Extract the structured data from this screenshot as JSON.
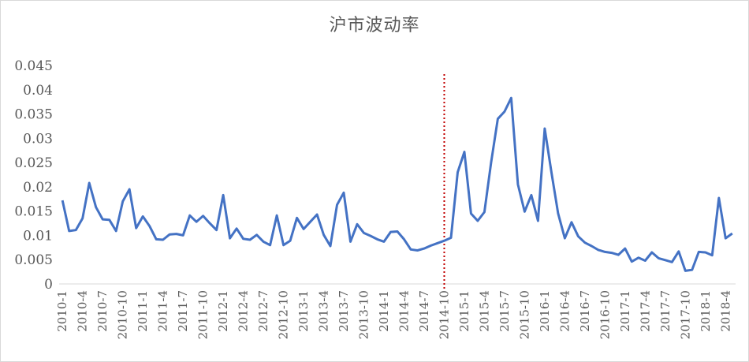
{
  "chart_data": {
    "type": "line",
    "title": "沪市波动率",
    "xlabel": "",
    "ylabel": "",
    "ylim": [
      0,
      0.045
    ],
    "yticks": [
      "0",
      "0.005",
      "0.01",
      "0.015",
      "0.02",
      "0.025",
      "0.03",
      "0.035",
      "0.04",
      "0.045"
    ],
    "grid": false,
    "legend": "none",
    "line_color": "#4472c4",
    "marker_line_color": "#c00000",
    "marker_x": "2014-10",
    "x": [
      "2010-1",
      "2010-2",
      "2010-3",
      "2010-4",
      "2010-5",
      "2010-6",
      "2010-7",
      "2010-8",
      "2010-9",
      "2010-10",
      "2010-11",
      "2010-12",
      "2011-1",
      "2011-2",
      "2011-3",
      "2011-4",
      "2011-5",
      "2011-6",
      "2011-7",
      "2011-8",
      "2011-9",
      "2011-10",
      "2011-11",
      "2011-12",
      "2012-1",
      "2012-2",
      "2012-3",
      "2012-4",
      "2012-5",
      "2012-6",
      "2012-7",
      "2012-8",
      "2012-9",
      "2012-10",
      "2012-11",
      "2012-12",
      "2013-1",
      "2013-2",
      "2013-3",
      "2013-4",
      "2013-5",
      "2013-6",
      "2013-7",
      "2013-8",
      "2013-9",
      "2013-10",
      "2013-11",
      "2013-12",
      "2014-1",
      "2014-2",
      "2014-3",
      "2014-4",
      "2014-5",
      "2014-6",
      "2014-7",
      "2014-8",
      "2014-9",
      "2014-10",
      "2014-11",
      "2014-12",
      "2015-1",
      "2015-2",
      "2015-3",
      "2015-4",
      "2015-5",
      "2015-6",
      "2015-7",
      "2015-8",
      "2015-9",
      "2015-10",
      "2015-11",
      "2015-12",
      "2016-1",
      "2016-2",
      "2016-3",
      "2016-4",
      "2016-5",
      "2016-6",
      "2016-7",
      "2016-8",
      "2016-9",
      "2016-10",
      "2016-11",
      "2016-12",
      "2017-1",
      "2017-2",
      "2017-3",
      "2017-4",
      "2017-5",
      "2017-6",
      "2017-7",
      "2017-8",
      "2017-9",
      "2017-10",
      "2017-11",
      "2017-12",
      "2018-1",
      "2018-2",
      "2018-3",
      "2018-4",
      "2018-5"
    ],
    "x_tick_labels": [
      "2010-1",
      "2010-4",
      "2010-7",
      "2010-10",
      "2011-1",
      "2011-4",
      "2011-7",
      "2011-10",
      "2012-1",
      "2012-4",
      "2012-7",
      "2012-10",
      "2013-1",
      "2013-4",
      "2013-7",
      "2013-10",
      "2014-1",
      "2014-4",
      "2014-7",
      "2014-10",
      "2015-1",
      "2015-4",
      "2015-7",
      "2015-10",
      "2016-1",
      "2016-4",
      "2016-7",
      "2016-10",
      "2017-1",
      "2017-4",
      "2017-7",
      "2017-10",
      "2018-1",
      "2018-4"
    ],
    "series": [
      {
        "values": [
          0.0172,
          0.0109,
          0.0111,
          0.0135,
          0.0208,
          0.0158,
          0.0133,
          0.0132,
          0.0109,
          0.017,
          0.0195,
          0.0115,
          0.0139,
          0.0119,
          0.0092,
          0.0091,
          0.0102,
          0.0103,
          0.01,
          0.0141,
          0.0128,
          0.014,
          0.0125,
          0.0111,
          0.0183,
          0.0094,
          0.0114,
          0.0093,
          0.0091,
          0.0101,
          0.0087,
          0.008,
          0.0141,
          0.008,
          0.0089,
          0.0136,
          0.0113,
          0.0128,
          0.0143,
          0.0101,
          0.0078,
          0.0163,
          0.0188,
          0.0087,
          0.0123,
          0.0105,
          0.0099,
          0.0092,
          0.0087,
          0.0107,
          0.0108,
          0.0092,
          0.0071,
          0.0069,
          0.0073,
          0.0079,
          0.0084,
          0.0089,
          0.0095,
          0.023,
          0.0272,
          0.0145,
          0.013,
          0.0148,
          0.025,
          0.034,
          0.0355,
          0.0383,
          0.0205,
          0.0149,
          0.0183,
          0.013,
          0.032,
          0.023,
          0.0145,
          0.0094,
          0.0127,
          0.0098,
          0.0085,
          0.0078,
          0.007,
          0.0066,
          0.0064,
          0.006,
          0.0073,
          0.0046,
          0.0054,
          0.0048,
          0.0065,
          0.0053,
          0.0049,
          0.0045,
          0.0067,
          0.0027,
          0.0029,
          0.0066,
          0.0065,
          0.0059,
          0.0177,
          0.0094,
          0.0104
        ]
      }
    ]
  }
}
